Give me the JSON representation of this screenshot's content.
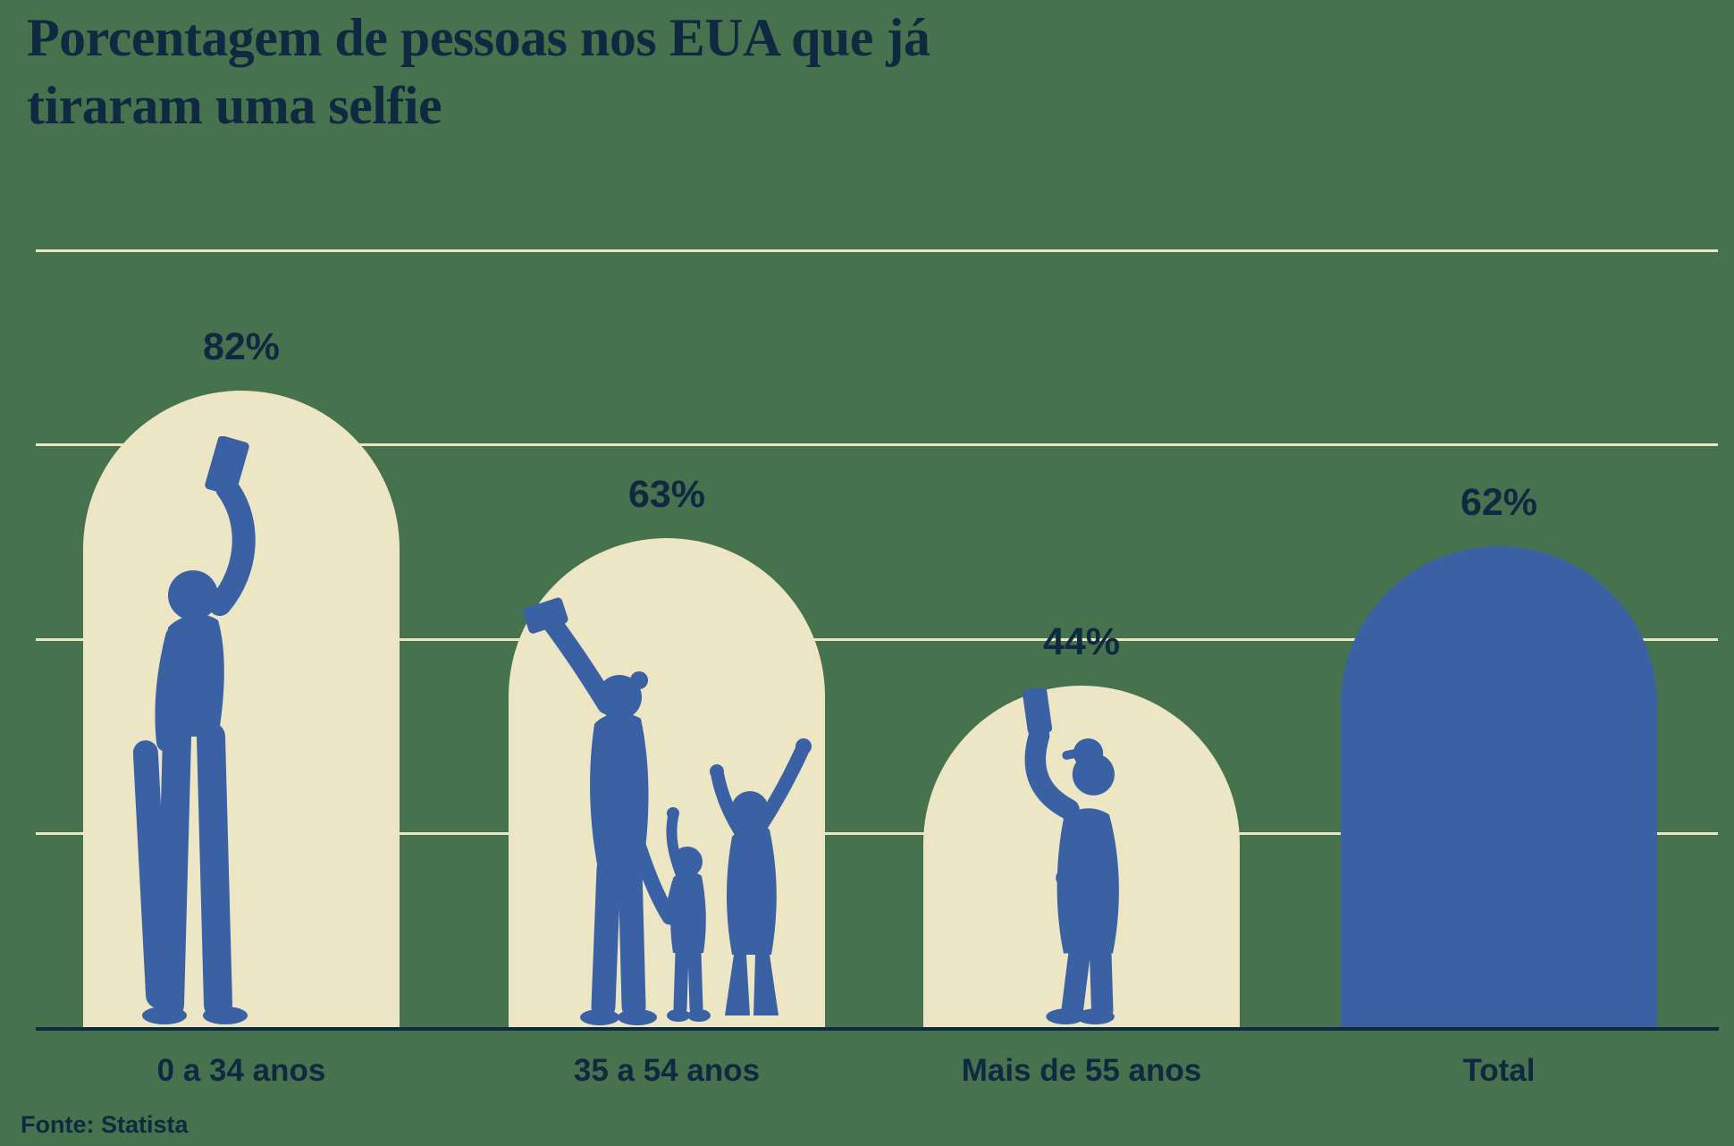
{
  "title": "Porcentagem de pessoas nos EUA que já tiraram uma selfie",
  "source": "Fonte: Statista",
  "colors": {
    "background": "#47724E",
    "bar_fill": "#EDE6C5",
    "total_bar_fill": "#3B61A5",
    "silhouette": "#3B61A5",
    "gridline": "#EDE6C5",
    "text": "#0F2940",
    "axis": "#0F2940"
  },
  "chart_data": {
    "type": "bar",
    "title": "Porcentagem de pessoas nos EUA que já tiraram uma selfie",
    "xlabel": "",
    "ylabel": "",
    "ylim": [
      0,
      100
    ],
    "grid": true,
    "gridline_levels_percent": [
      25,
      50,
      75,
      100
    ],
    "legend": false,
    "source": "Fonte: Statista",
    "categories": [
      "0 a 34 anos",
      "35 a 54 anos",
      "Mais de 55 anos",
      "Total"
    ],
    "values": [
      82,
      63,
      44,
      62
    ],
    "bars": [
      {
        "category": "0 a 34 anos",
        "value": 82,
        "value_label": "82%",
        "fill": "cream",
        "silhouette": "young-person-with-skateboard-taking-selfie"
      },
      {
        "category": "35 a 54 anos",
        "value": 63,
        "value_label": "63%",
        "fill": "cream",
        "silhouette": "family-of-three-taking-selfie"
      },
      {
        "category": "Mais de 55 anos",
        "value": 44,
        "value_label": "44%",
        "fill": "cream",
        "silhouette": "older-man-with-flat-cap-taking-selfie"
      },
      {
        "category": "Total",
        "value": 62,
        "value_label": "62%",
        "fill": "blue",
        "silhouette": null
      }
    ]
  }
}
